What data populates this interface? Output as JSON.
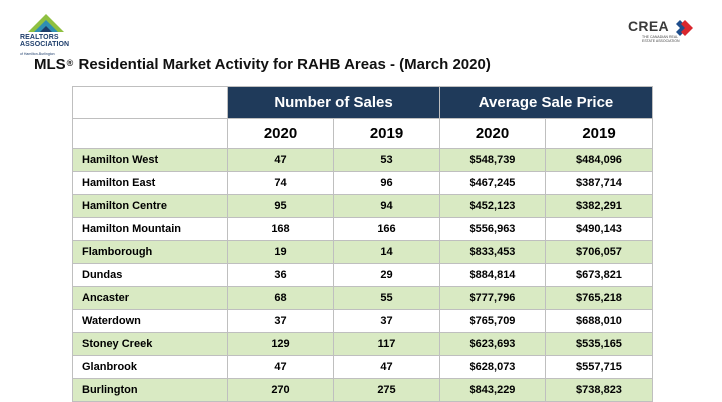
{
  "logo_left": {
    "brand_line1": "REALTORS",
    "brand_line2": "ASSOCIATION",
    "tagline": "of Hamilton-Burlington",
    "colors": {
      "navy": "#1d3d6b",
      "green": "#8fc041",
      "teal": "#2f8fb3"
    }
  },
  "logo_right": {
    "wordmark": "CREA",
    "subtitle": "The Canadian Real Estate Association",
    "colors": {
      "red": "#d9272e",
      "blue": "#1f4e8c"
    }
  },
  "title": {
    "prefix": "MLS",
    "reg_mark": "®",
    "text": "Residential Market Activity for RAHB Areas - (March 2020)"
  },
  "table": {
    "group_headers": {
      "sales": "Number of Sales",
      "price": "Average Sale Price"
    },
    "years": [
      "2020",
      "2019",
      "2020",
      "2019"
    ],
    "rows": [
      {
        "area": "Hamilton West",
        "sales_2020": "47",
        "sales_2019": "53",
        "price_2020": "$548,739",
        "price_2019": "$484,096"
      },
      {
        "area": "Hamilton East",
        "sales_2020": "74",
        "sales_2019": "96",
        "price_2020": "$467,245",
        "price_2019": "$387,714"
      },
      {
        "area": "Hamilton Centre",
        "sales_2020": "95",
        "sales_2019": "94",
        "price_2020": "$452,123",
        "price_2019": "$382,291"
      },
      {
        "area": "Hamilton Mountain",
        "sales_2020": "168",
        "sales_2019": "166",
        "price_2020": "$556,963",
        "price_2019": "$490,143"
      },
      {
        "area": "Flamborough",
        "sales_2020": "19",
        "sales_2019": "14",
        "price_2020": "$833,453",
        "price_2019": "$706,057"
      },
      {
        "area": "Dundas",
        "sales_2020": "36",
        "sales_2019": "29",
        "price_2020": "$884,814",
        "price_2019": "$673,821"
      },
      {
        "area": "Ancaster",
        "sales_2020": "68",
        "sales_2019": "55",
        "price_2020": "$777,796",
        "price_2019": "$765,218"
      },
      {
        "area": "Waterdown",
        "sales_2020": "37",
        "sales_2019": "37",
        "price_2020": "$765,709",
        "price_2019": "$688,010"
      },
      {
        "area": "Stoney Creek",
        "sales_2020": "129",
        "sales_2019": "117",
        "price_2020": "$623,693",
        "price_2019": "$535,165"
      },
      {
        "area": "Glanbrook",
        "sales_2020": "47",
        "sales_2019": "47",
        "price_2020": "$628,073",
        "price_2019": "$557,715"
      },
      {
        "area": "Burlington",
        "sales_2020": "270",
        "sales_2019": "275",
        "price_2020": "$843,229",
        "price_2019": "$738,823"
      }
    ],
    "colors": {
      "header_bg": "#1f3a5a",
      "band_green": "#d9eac3",
      "border": "#bfbfbf"
    }
  }
}
